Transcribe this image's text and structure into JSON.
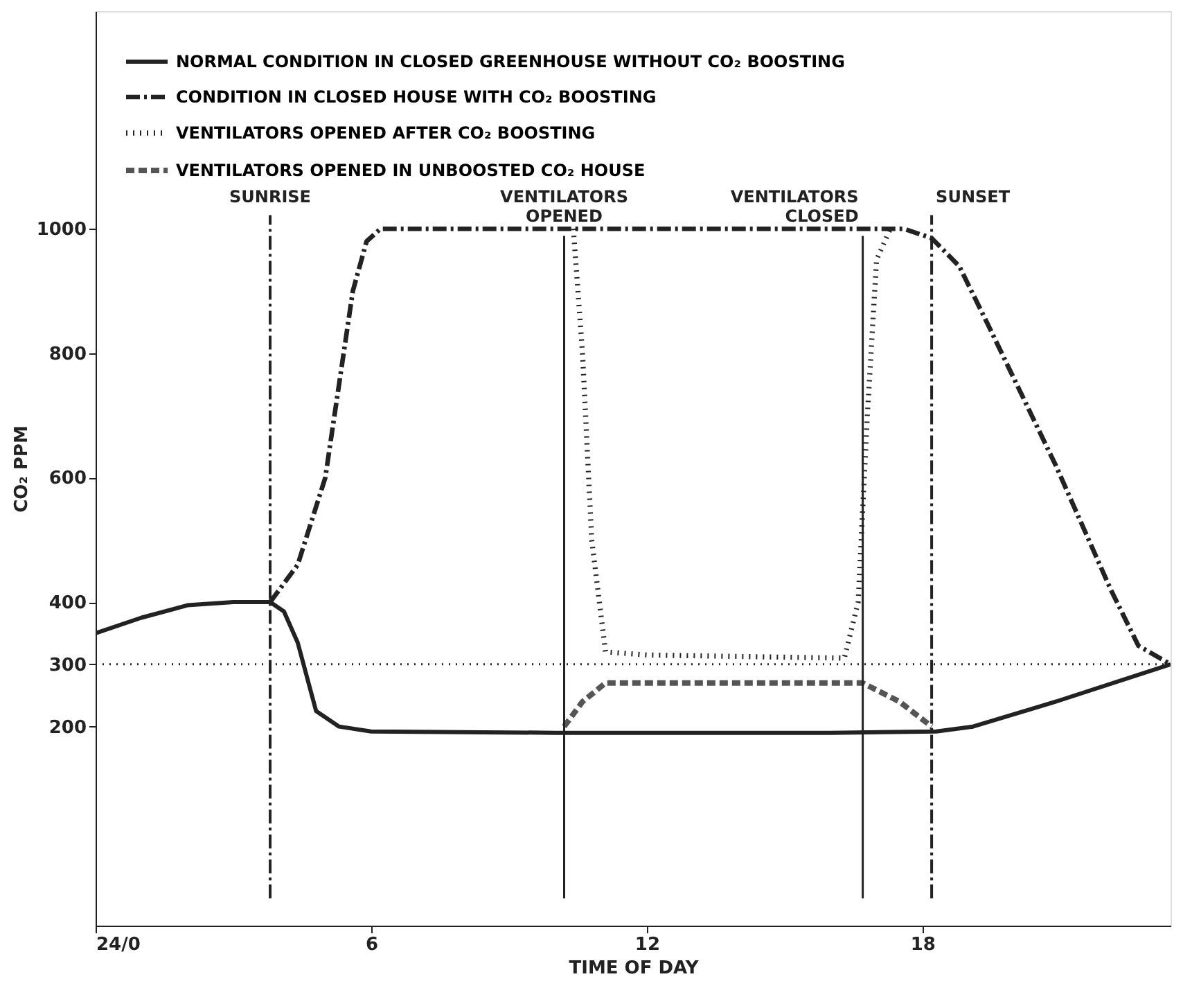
{
  "chart_data": {
    "type": "line",
    "xlabel": "TIME OF DAY",
    "ylabel": "CO₂ PPM",
    "xlim": [
      0,
      23.4
    ],
    "xticks": [
      {
        "value": 0,
        "label": "24/0"
      },
      6,
      12,
      18
    ],
    "ylim": [
      -120,
      1350
    ],
    "yticks": [
      200,
      300,
      400,
      600,
      800,
      1000
    ],
    "grid": false,
    "legend": "top left",
    "marker": "none",
    "series": [
      {
        "name": "NORMAL CONDITION IN CLOSED GREENHOUSE WITHOUT CO₂ BOOSTING",
        "color": "#222222",
        "line_style": "solid",
        "x": [
          0,
          1,
          2,
          3,
          3.8,
          4.1,
          4.4,
          4.8,
          5.3,
          6,
          10,
          16,
          18.3,
          19.1,
          20.9,
          23.4
        ],
        "values": [
          350,
          375,
          395,
          400,
          400,
          385,
          335,
          225,
          200,
          192,
          190,
          190,
          192,
          200,
          240,
          300
        ]
      },
      {
        "name": "CONDITION IN CLOSED HOUSE WITH CO₂ BOOSTING",
        "color": "#222222",
        "line_style": "dashdot",
        "x": [
          3.8,
          4.4,
          5,
          5.6,
          5.9,
          6.2,
          10,
          17.6,
          18.2,
          18.8,
          19.4,
          20.9,
          22.1,
          22.7,
          23.4
        ],
        "values": [
          400,
          460,
          600,
          900,
          980,
          1000,
          1000,
          1000,
          985,
          940,
          850,
          620,
          420,
          330,
          300
        ]
      },
      {
        "name": "VENTILATORS OPENED AFTER CO₂ BOOSTING",
        "color": "#222222",
        "line_style": "dotted",
        "x": [
          10.4,
          10.6,
          10.8,
          11.1,
          12,
          16.3,
          16.6,
          16.8,
          17,
          17.3
        ],
        "values": [
          1000,
          800,
          500,
          320,
          315,
          310,
          400,
          700,
          950,
          1000
        ]
      },
      {
        "name": "VENTILATORS OPENED IN UNBOOSTED CO₂ HOUSE",
        "color": "#555555",
        "line_style": "dashed",
        "x": [
          10.2,
          10.6,
          11.1,
          12,
          16.7,
          17.5,
          18.2
        ],
        "values": [
          200,
          240,
          270,
          270,
          270,
          240,
          200
        ]
      }
    ],
    "ref_lines": [
      {
        "axis": "y",
        "value": 300,
        "line_style": "dotted",
        "color": "#222222"
      },
      {
        "axis": "x",
        "value": 3.8,
        "label": "SUNRISE",
        "line_style": "dashdot",
        "color": "#222222"
      },
      {
        "axis": "x",
        "value": 10.2,
        "label": "VENTILATORS OPENED",
        "line_style": "solid",
        "color": "#222222"
      },
      {
        "axis": "x",
        "value": 16.7,
        "label": "VENTILATORS CLOSED",
        "line_style": "solid",
        "color": "#222222"
      },
      {
        "axis": "x",
        "value": 18.2,
        "label": "SUNSET",
        "line_style": "dashdot",
        "color": "#222222"
      }
    ]
  }
}
